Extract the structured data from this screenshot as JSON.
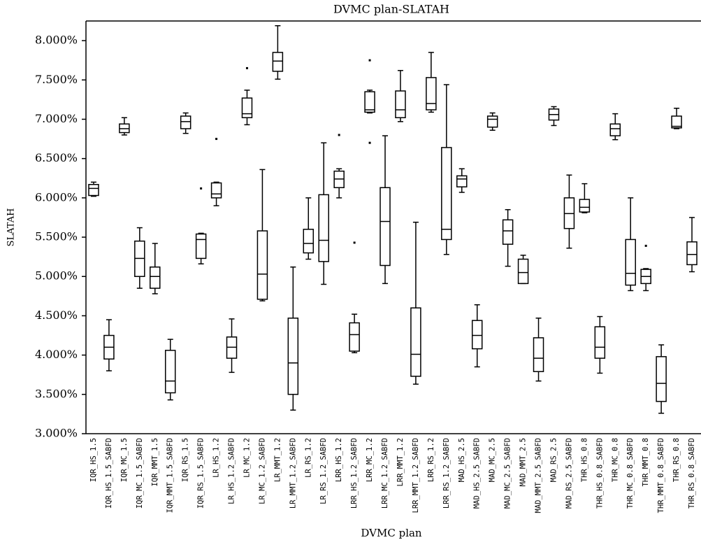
{
  "chart_data": {
    "type": "box",
    "title": "DVMC plan-SLATAH",
    "x_label": "DVMC plan",
    "y_label": "SLATAH",
    "color": "#000000",
    "categories": [
      "IQR_HS_1.5",
      "IQR_HS_1.5_SABFD",
      "IQR_MC_1.5",
      "IQR_MC_1.5_SABFD",
      "IQR_MMT_1.5",
      "IQR_MMT_1.5_SABFD",
      "IQR_RS_1.5",
      "IQR_RS_1.5_SABFD",
      "LR_HS_1.2",
      "LR_HS_1.2_SABFD",
      "LR_MC_1.2",
      "LR_MC_1.2_SABFD",
      "LR_MMT_1.2",
      "LR_MMT_1.2_SABFD",
      "LR_RS_1.2",
      "LR_RS_1.2_SABFD",
      "LRR_HS_1.2",
      "LRR_HS_1.2_SABFD",
      "LRR_MC_1.2",
      "LRR_MC_1.2_SABFD",
      "LRR_MMT_1.2",
      "LRR_MMT_1.2_SABFD",
      "LRR_RS_1.2",
      "LRR_RS_1.2_SABFD",
      "MAD_HS_2.5",
      "MAD_HS_2.5_SABFD",
      "MAD_MC_2.5",
      "MAD_MC_2.5_SABFD",
      "MAD_MMT_2.5",
      "MAD_MMT_2.5_SABFD",
      "MAD_RS_2.5",
      "MAD_RS_2.5_SABFD",
      "THR_HS_0.8",
      "THR_HS_0.8_SABFD",
      "THR_MC_0.8",
      "THR_MC_0.8_SABFD",
      "THR_MMT_0.8",
      "THR_MMT_0.8_SABFD",
      "THR_RS_0.8",
      "THR_RS_0.8_SABFD"
    ],
    "low": [
      6.02,
      3.8,
      6.8,
      4.85,
      4.78,
      3.43,
      6.82,
      5.16,
      5.9,
      3.78,
      6.93,
      4.69,
      7.51,
      3.3,
      5.22,
      4.9,
      6.0,
      4.03,
      7.08,
      4.91,
      6.97,
      3.63,
      7.09,
      5.28,
      6.07,
      3.85,
      6.86,
      5.13,
      4.91,
      3.67,
      6.92,
      5.36,
      5.81,
      3.77,
      6.74,
      4.82,
      4.82,
      3.26,
      6.88,
      5.06
    ],
    "q1": [
      6.03,
      3.95,
      6.83,
      5.0,
      4.85,
      3.52,
      6.88,
      5.23,
      6.0,
      3.96,
      7.02,
      4.71,
      7.61,
      3.5,
      5.3,
      5.19,
      6.13,
      4.05,
      7.09,
      5.14,
      7.02,
      3.73,
      7.12,
      5.47,
      6.14,
      4.08,
      6.9,
      5.41,
      4.91,
      3.79,
      6.99,
      5.61,
      5.82,
      3.96,
      6.79,
      4.89,
      4.91,
      3.41,
      6.89,
      5.15
    ],
    "median": [
      6.12,
      4.1,
      6.88,
      5.23,
      5.0,
      3.67,
      6.97,
      5.47,
      6.05,
      4.1,
      7.07,
      5.03,
      7.74,
      3.9,
      5.42,
      5.46,
      6.24,
      4.26,
      7.12,
      5.7,
      7.12,
      4.01,
      7.2,
      5.6,
      6.24,
      4.25,
      7.0,
      5.58,
      5.05,
      3.96,
      7.06,
      5.8,
      5.88,
      4.1,
      6.88,
      5.04,
      5.0,
      3.64,
      6.91,
      5.28
    ],
    "q3": [
      6.17,
      4.25,
      6.94,
      5.45,
      5.12,
      4.06,
      7.04,
      5.54,
      6.19,
      4.23,
      7.27,
      5.58,
      7.85,
      4.47,
      5.6,
      6.04,
      6.34,
      4.41,
      7.35,
      6.13,
      7.36,
      4.6,
      7.53,
      6.64,
      6.28,
      4.44,
      7.04,
      5.72,
      5.22,
      4.22,
      7.13,
      6.0,
      5.98,
      4.36,
      6.94,
      5.47,
      5.09,
      3.98,
      7.04,
      5.44
    ],
    "high": [
      6.2,
      4.45,
      7.02,
      5.62,
      5.42,
      4.2,
      7.08,
      5.55,
      6.2,
      4.46,
      7.37,
      6.36,
      8.19,
      5.12,
      6.0,
      6.7,
      6.37,
      4.52,
      7.37,
      6.79,
      7.62,
      5.69,
      7.85,
      7.44,
      6.37,
      4.64,
      7.08,
      5.85,
      5.27,
      4.47,
      7.16,
      6.29,
      6.18,
      4.49,
      7.07,
      6.0,
      5.1,
      4.13,
      7.14,
      5.75
    ],
    "outliers": [
      [],
      [],
      [],
      [],
      [],
      [],
      [],
      [
        6.12
      ],
      [
        6.75
      ],
      [],
      [
        7.65
      ],
      [],
      [],
      [],
      [],
      [],
      [
        6.8
      ],
      [
        5.43
      ],
      [
        7.75,
        6.7
      ],
      [],
      [],
      [],
      [],
      [],
      [],
      [],
      [],
      [],
      [],
      [],
      [],
      [],
      [],
      [],
      [],
      [],
      [
        5.39
      ],
      [],
      [],
      []
    ],
    "ylim": [
      3,
      8.25
    ],
    "yticks": [
      {
        "value": 3,
        "label": "3.000%"
      },
      {
        "value": 3.5,
        "label": "3.500%"
      },
      {
        "value": 4,
        "label": "4.000%"
      },
      {
        "value": 4.5,
        "label": "4.500%"
      },
      {
        "value": 5,
        "label": "5.000%"
      },
      {
        "value": 5.5,
        "label": "5.500%"
      },
      {
        "value": 6,
        "label": "6.000%"
      },
      {
        "value": 6.5,
        "label": "6.500%"
      },
      {
        "value": 7,
        "label": "7.000%"
      },
      {
        "value": 7.5,
        "label": "7.500%"
      },
      {
        "value": 8,
        "label": "8.000%"
      }
    ]
  }
}
